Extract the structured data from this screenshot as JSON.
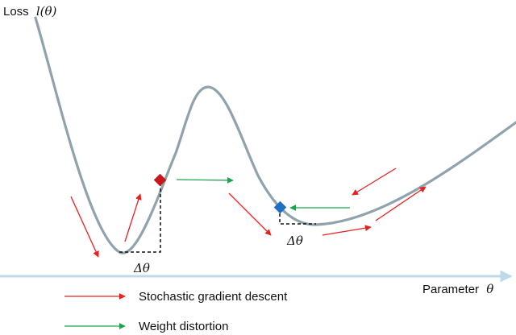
{
  "axes": {
    "y_label": "Loss",
    "y_label_math": "l(θ)",
    "x_label": "Parameter",
    "x_label_math": "θ"
  },
  "annotations": {
    "delta_left": "Δθ",
    "delta_right": "Δθ"
  },
  "legend": {
    "sgd_label": "Stochastic gradient descent",
    "distortion_label": "Weight distortion"
  },
  "colors": {
    "curve": "#8fa3ad",
    "axis": "#bcdbe6",
    "sgd_arrow": "#e8201e",
    "distortion_arrow": "#1aa34a",
    "marker_red": "#c8161d",
    "marker_blue": "#1f6fc2",
    "dashed": "#111111"
  },
  "markers": [
    {
      "name": "red-diamond-marker",
      "color_key": "marker_red"
    },
    {
      "name": "blue-diamond-marker",
      "color_key": "marker_blue"
    }
  ]
}
